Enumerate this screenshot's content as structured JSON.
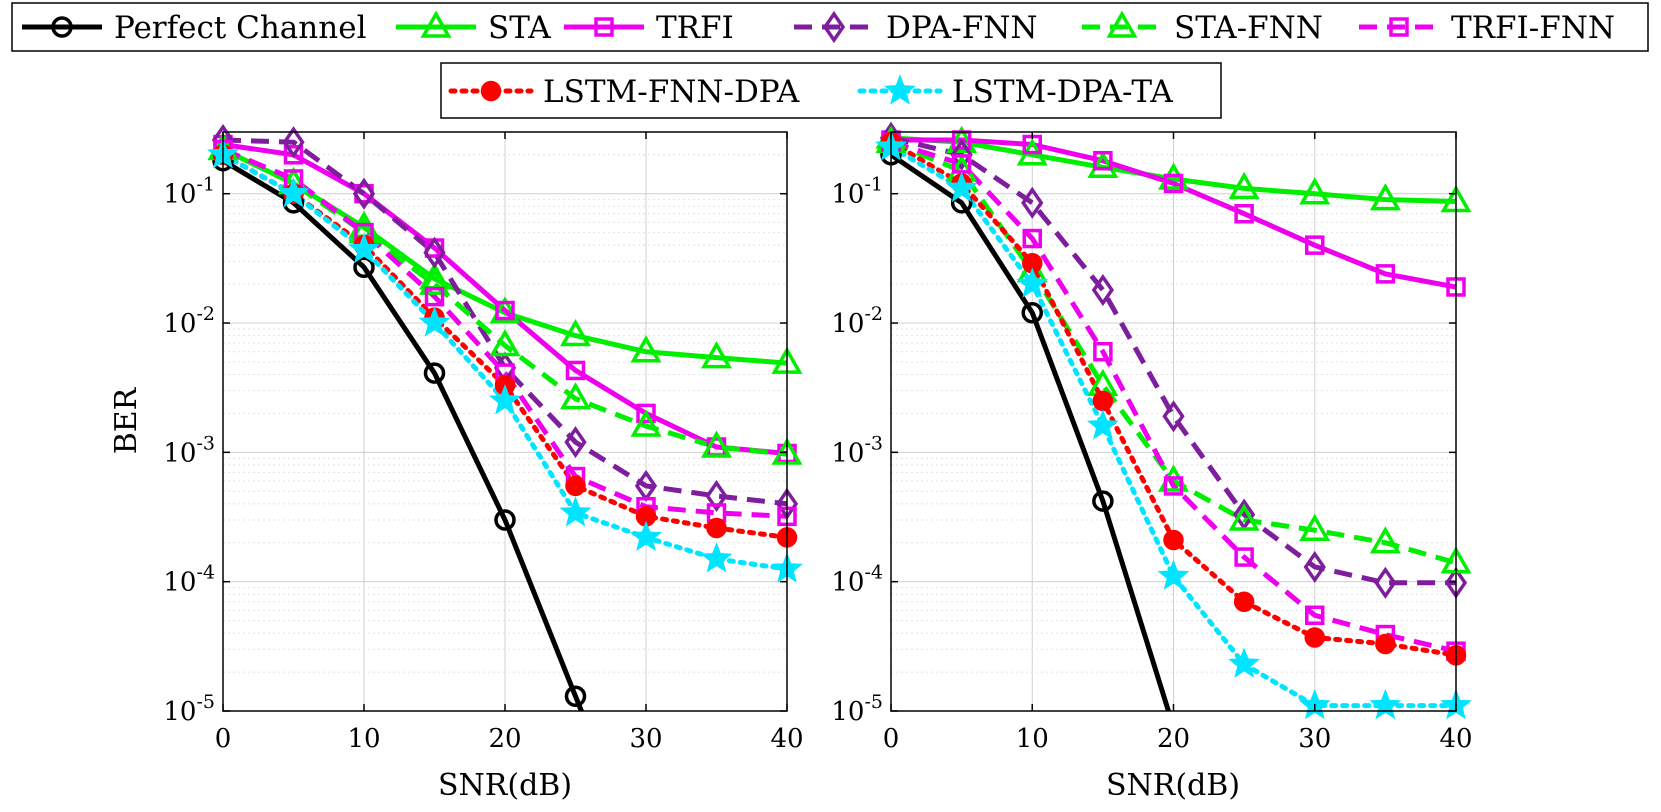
{
  "legend": [
    {
      "label": "Perfect Channel"
    },
    {
      "label": "STA"
    },
    {
      "label": "TRFI"
    },
    {
      "label": "DPA-FNN"
    },
    {
      "label": "STA-FNN"
    },
    {
      "label": "TRFI-FNN"
    },
    {
      "label": "LSTM-FNN-DPA"
    },
    {
      "label": "LSTM-DPA-TA"
    }
  ],
  "styles": {
    "Perfect Channel": {
      "color": "#000000",
      "dash": "solid",
      "marker": "circle",
      "fill": "none"
    },
    "STA": {
      "color": "#00ee00",
      "dash": "solid",
      "marker": "triangle",
      "fill": "none"
    },
    "TRFI": {
      "color": "#ee00ee",
      "dash": "solid",
      "marker": "square",
      "fill": "none"
    },
    "DPA-FNN": {
      "color": "#7e1e9c",
      "dash": "dashed",
      "marker": "diamond",
      "fill": "none"
    },
    "STA-FNN": {
      "color": "#00ee00",
      "dash": "dashed",
      "marker": "triangle",
      "fill": "none"
    },
    "TRFI-FNN": {
      "color": "#ee00ee",
      "dash": "dashed",
      "marker": "square",
      "fill": "none"
    },
    "LSTM-FNN-DPA": {
      "color": "#ff0000",
      "dash": "dotted",
      "marker": "dot",
      "fill": "#ff0000"
    },
    "LSTM-DPA-TA": {
      "color": "#00e5ff",
      "dash": "dotted",
      "marker": "star",
      "fill": "#00e5ff"
    }
  },
  "chart_data": [
    {
      "type": "line",
      "xlabel": "SNR(dB)",
      "ylabel": "BER",
      "xlim": [
        0,
        40
      ],
      "ylim": [
        1e-05,
        0.3
      ],
      "yscale": "log",
      "grid": true,
      "x_ticks": [
        "0",
        "10",
        "20",
        "30",
        "40"
      ],
      "y_ticks": [
        {
          "base": "10",
          "exp": "-1"
        },
        {
          "base": "10",
          "exp": "-2"
        },
        {
          "base": "10",
          "exp": "-3"
        },
        {
          "base": "10",
          "exp": "-4"
        },
        {
          "base": "10",
          "exp": "-5"
        }
      ],
      "x": [
        0,
        5,
        10,
        15,
        20,
        25,
        30,
        35,
        40
      ],
      "series": [
        {
          "name": "Perfect Channel",
          "values": [
            0.18,
            0.085,
            0.027,
            0.0041,
            0.0003,
            1.3e-05,
            null,
            null,
            null
          ]
        },
        {
          "name": "STA",
          "values": [
            0.22,
            0.12,
            0.055,
            0.022,
            0.012,
            0.008,
            0.006,
            0.0054,
            0.0049
          ]
        },
        {
          "name": "TRFI",
          "values": [
            0.24,
            0.2,
            0.1,
            0.038,
            0.0125,
            0.0043,
            0.002,
            0.0011,
            0.00098
          ]
        },
        {
          "name": "DPA-FNN",
          "values": [
            0.26,
            0.25,
            0.1,
            0.035,
            0.0045,
            0.0012,
            0.00055,
            0.00046,
            0.0004
          ]
        },
        {
          "name": "STA-FNN",
          "values": [
            0.22,
            0.12,
            0.05,
            0.02,
            0.0067,
            0.0026,
            0.0016,
            0.0011,
            0.00097
          ]
        },
        {
          "name": "TRFI-FNN",
          "values": [
            0.22,
            0.13,
            0.05,
            0.016,
            0.0041,
            0.00065,
            0.00038,
            0.00034,
            0.00032
          ]
        },
        {
          "name": "LSTM-FNN-DPA",
          "values": [
            0.2,
            0.1,
            0.04,
            0.011,
            0.0033,
            0.00055,
            0.00032,
            0.00026,
            0.00022
          ]
        },
        {
          "name": "LSTM-DPA-TA",
          "values": [
            0.2,
            0.1,
            0.037,
            0.01,
            0.0025,
            0.00034,
            0.00022,
            0.00015,
            0.000125
          ]
        }
      ]
    },
    {
      "type": "line",
      "xlabel": "SNR(dB)",
      "ylabel": "",
      "xlim": [
        0,
        40
      ],
      "ylim": [
        1e-05,
        0.3
      ],
      "yscale": "log",
      "grid": true,
      "x_ticks": [
        "0",
        "10",
        "20",
        "30",
        "40"
      ],
      "y_ticks": [
        {
          "base": "10",
          "exp": "-1"
        },
        {
          "base": "10",
          "exp": "-2"
        },
        {
          "base": "10",
          "exp": "-3"
        },
        {
          "base": "10",
          "exp": "-4"
        },
        {
          "base": "10",
          "exp": "-5"
        }
      ],
      "x": [
        0,
        5,
        10,
        15,
        20,
        25,
        30,
        35,
        40
      ],
      "series": [
        {
          "name": "Perfect Channel",
          "values": [
            0.2,
            0.085,
            0.012,
            0.00042,
            7.5e-06,
            null,
            null,
            null,
            null
          ]
        },
        {
          "name": "STA",
          "values": [
            0.27,
            0.25,
            0.2,
            0.16,
            0.13,
            0.11,
            0.1,
            0.09,
            0.087
          ]
        },
        {
          "name": "TRFI",
          "values": [
            0.26,
            0.26,
            0.24,
            0.18,
            0.12,
            0.07,
            0.04,
            0.024,
            0.019
          ]
        },
        {
          "name": "DPA-FNN",
          "values": [
            0.27,
            0.2,
            0.085,
            0.018,
            0.0019,
            0.00033,
            0.00013,
            9.8e-05,
            9.8e-05
          ]
        },
        {
          "name": "STA-FNN",
          "values": [
            0.25,
            0.15,
            0.025,
            0.0033,
            0.0006,
            0.0003,
            0.00025,
            0.0002,
            0.00014
          ]
        },
        {
          "name": "TRFI-FNN",
          "values": [
            0.25,
            0.17,
            0.045,
            0.006,
            0.00055,
            0.000155,
            5.5e-05,
            3.9e-05,
            2.9e-05
          ]
        },
        {
          "name": "LSTM-FNN-DPA",
          "values": [
            0.25,
            0.12,
            0.029,
            0.0025,
            0.00021,
            7e-05,
            3.7e-05,
            3.3e-05,
            2.7e-05
          ]
        },
        {
          "name": "LSTM-DPA-TA",
          "values": [
            0.23,
            0.11,
            0.02,
            0.0016,
            0.00011,
            2.3e-05,
            1.1e-05,
            1.1e-05,
            1.1e-05
          ]
        }
      ]
    }
  ]
}
